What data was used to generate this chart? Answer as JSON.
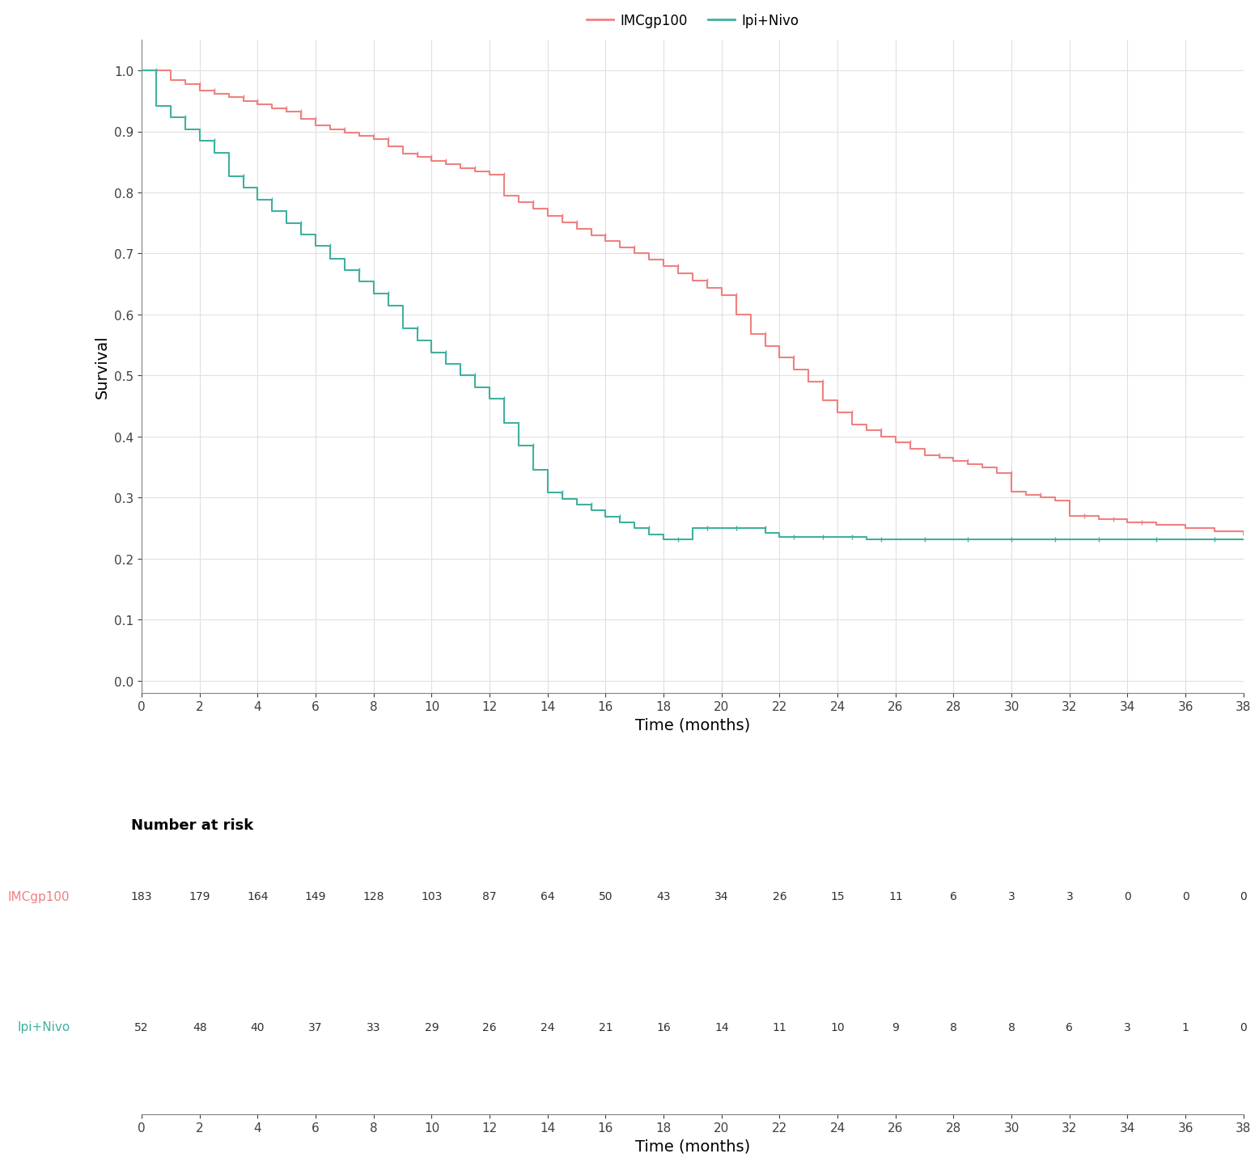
{
  "title": "",
  "ylabel": "Survival",
  "xlabel": "Time (months)",
  "xlim": [
    0,
    38
  ],
  "ylim": [
    -0.02,
    1.05
  ],
  "yticks": [
    0.0,
    0.1,
    0.2,
    0.3,
    0.4,
    0.5,
    0.6,
    0.7,
    0.8,
    0.9,
    1.0
  ],
  "xticks": [
    0,
    2,
    4,
    6,
    8,
    10,
    12,
    14,
    16,
    18,
    20,
    22,
    24,
    26,
    28,
    30,
    32,
    34,
    36,
    38
  ],
  "background_color": "#ffffff",
  "grid_color": "#e0e0e0",
  "imcgp100_color": "#F08080",
  "ipinivo_color": "#40B0A0",
  "legend_labels": [
    "IMCgp100",
    "Ipi+Nivo"
  ],
  "number_at_risk_title": "Number at risk",
  "imcgp100_label": "IMCgp100",
  "ipinivo_label": "Ipi+Nivo",
  "risk_times": [
    0,
    2,
    4,
    6,
    8,
    10,
    12,
    14,
    16,
    18,
    20,
    22,
    24,
    26,
    28,
    30,
    32,
    34,
    36,
    38
  ],
  "imcgp100_at_risk": [
    183,
    179,
    164,
    149,
    128,
    103,
    87,
    64,
    50,
    43,
    34,
    26,
    15,
    11,
    6,
    3,
    3,
    0,
    0,
    0
  ],
  "ipinivo_at_risk": [
    52,
    48,
    40,
    37,
    33,
    29,
    26,
    24,
    21,
    16,
    14,
    11,
    10,
    9,
    8,
    8,
    6,
    3,
    1,
    0
  ],
  "imcgp100_times": [
    0,
    0.5,
    1.0,
    1.5,
    2.0,
    2.5,
    3.0,
    3.5,
    4.0,
    4.5,
    5.0,
    5.5,
    6.0,
    6.5,
    7.0,
    7.5,
    8.0,
    8.5,
    9.0,
    9.5,
    10.0,
    10.5,
    11.0,
    11.5,
    12.0,
    12.5,
    13.0,
    13.5,
    14.0,
    14.5,
    15.0,
    15.5,
    16.0,
    16.5,
    17.0,
    17.5,
    18.0,
    18.5,
    19.0,
    19.5,
    20.0,
    20.5,
    21.0,
    21.5,
    22.0,
    22.5,
    23.0,
    23.5,
    24.0,
    24.5,
    25.0,
    25.5,
    26.0,
    26.5,
    27.0,
    27.5,
    28.0,
    28.5,
    29.0,
    29.5,
    30.0,
    30.5,
    31.0,
    31.5,
    32.0,
    33.0,
    34.0,
    35.0,
    36.0,
    37.0,
    38.0
  ],
  "imcgp100_survival": [
    1.0,
    1.0,
    0.984,
    0.978,
    0.967,
    0.961,
    0.956,
    0.95,
    0.944,
    0.938,
    0.932,
    0.921,
    0.91,
    0.904,
    0.898,
    0.893,
    0.887,
    0.875,
    0.864,
    0.858,
    0.852,
    0.846,
    0.84,
    0.835,
    0.829,
    0.795,
    0.784,
    0.773,
    0.762,
    0.751,
    0.74,
    0.73,
    0.72,
    0.71,
    0.7,
    0.69,
    0.68,
    0.668,
    0.656,
    0.644,
    0.632,
    0.6,
    0.568,
    0.548,
    0.53,
    0.51,
    0.49,
    0.46,
    0.44,
    0.42,
    0.41,
    0.4,
    0.39,
    0.38,
    0.37,
    0.365,
    0.36,
    0.355,
    0.35,
    0.34,
    0.31,
    0.305,
    0.3,
    0.295,
    0.27,
    0.265,
    0.26,
    0.255,
    0.25,
    0.245,
    0.24
  ],
  "ipinivo_times": [
    0,
    0.5,
    1.0,
    1.5,
    2.0,
    2.5,
    3.0,
    3.5,
    4.0,
    4.5,
    5.0,
    5.5,
    6.0,
    6.5,
    7.0,
    7.5,
    8.0,
    8.5,
    9.0,
    9.5,
    10.0,
    10.5,
    11.0,
    11.5,
    12.0,
    12.5,
    13.0,
    13.5,
    14.0,
    14.5,
    15.0,
    15.5,
    16.0,
    16.5,
    17.0,
    17.5,
    18.0,
    18.5,
    19.0,
    19.5,
    20.0,
    20.5,
    21.0,
    21.5,
    22.0,
    22.5,
    23.0,
    23.5,
    24.0,
    25.0,
    26.0,
    27.0,
    28.0,
    29.0,
    30.0,
    31.0,
    32.0,
    33.0,
    34.0,
    35.0,
    36.0,
    37.0,
    38.0
  ],
  "ipinivo_survival": [
    1.0,
    0.942,
    0.923,
    0.904,
    0.885,
    0.865,
    0.827,
    0.808,
    0.788,
    0.769,
    0.75,
    0.731,
    0.712,
    0.692,
    0.673,
    0.654,
    0.635,
    0.615,
    0.577,
    0.558,
    0.538,
    0.519,
    0.5,
    0.481,
    0.462,
    0.423,
    0.385,
    0.346,
    0.308,
    0.298,
    0.288,
    0.279,
    0.269,
    0.26,
    0.25,
    0.24,
    0.231,
    0.231,
    0.25,
    0.25,
    0.25,
    0.25,
    0.25,
    0.242,
    0.235,
    0.235,
    0.235,
    0.235,
    0.235,
    0.231,
    0.231,
    0.231,
    0.231,
    0.231,
    0.231,
    0.231,
    0.231,
    0.231,
    0.231,
    0.231,
    0.231,
    0.231,
    0.231
  ]
}
